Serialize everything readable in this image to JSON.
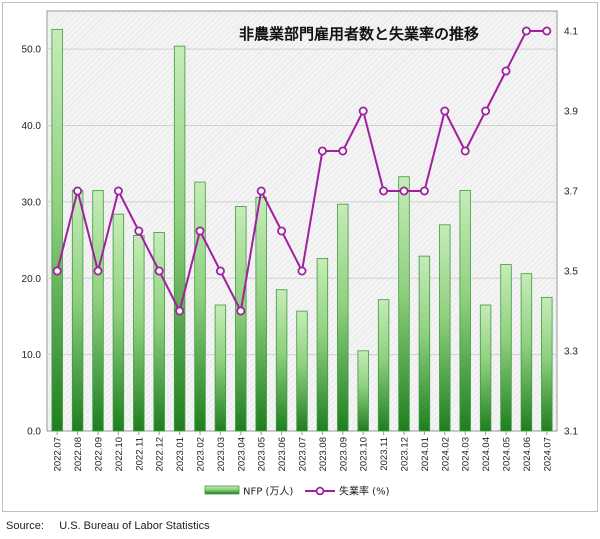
{
  "chart_data": {
    "type": "bar",
    "title": "非農業部門雇用者数と失業率の推移",
    "categories": [
      "2022.07",
      "2022.08",
      "2022.09",
      "2022.10",
      "2022.11",
      "2022.12",
      "2023.01",
      "2023.02",
      "2023.03",
      "2023.04",
      "2023.05",
      "2023.06",
      "2023.07",
      "2023.08",
      "2023.09",
      "2023.10",
      "2023.11",
      "2023.12",
      "2024.01",
      "2024.02",
      "2024.03",
      "2024.04",
      "2024.05",
      "2024.06",
      "2024.07"
    ],
    "series": [
      {
        "name": "NFP (万人)",
        "type": "bar",
        "axis": "left",
        "values": [
          52.6,
          31.5,
          31.5,
          28.4,
          25.6,
          26.0,
          50.4,
          32.6,
          16.5,
          29.4,
          30.6,
          18.5,
          15.7,
          22.6,
          29.7,
          10.5,
          17.2,
          33.3,
          22.9,
          27.0,
          31.5,
          16.5,
          21.8,
          20.6,
          17.5
        ]
      },
      {
        "name": "失業率 (%)",
        "type": "line",
        "axis": "right",
        "values": [
          3.5,
          3.7,
          3.5,
          3.7,
          3.6,
          3.5,
          3.4,
          3.6,
          3.5,
          3.4,
          3.7,
          3.6,
          3.5,
          3.8,
          3.8,
          3.9,
          3.7,
          3.7,
          3.7,
          3.9,
          3.8,
          3.9,
          4.0,
          4.1,
          4.1
        ]
      }
    ],
    "y_left": {
      "lim": [
        0,
        55
      ],
      "ticks": [
        "0.0",
        "10.0",
        "20.0",
        "30.0",
        "40.0",
        "50.0"
      ],
      "tick_values": [
        0,
        10,
        20,
        30,
        40,
        50
      ]
    },
    "y_right": {
      "lim": [
        3.1,
        4.15
      ],
      "ticks": [
        "3.1",
        "3.3",
        "3.5",
        "3.7",
        "3.9",
        "4.1"
      ],
      "tick_values": [
        3.1,
        3.3,
        3.5,
        3.7,
        3.9,
        4.1
      ]
    },
    "grid": true,
    "legend": "bottom",
    "colors": {
      "bar_top": "#c6ecb8",
      "bar_bottom": "#1e7f1e",
      "bar_edge": "#3f9a3f",
      "line": "#a020a0",
      "marker_fill": "#ffffff",
      "grid": "#d0d0d0"
    }
  },
  "source": "Source:     U.S. Bureau of Labor Statistics"
}
